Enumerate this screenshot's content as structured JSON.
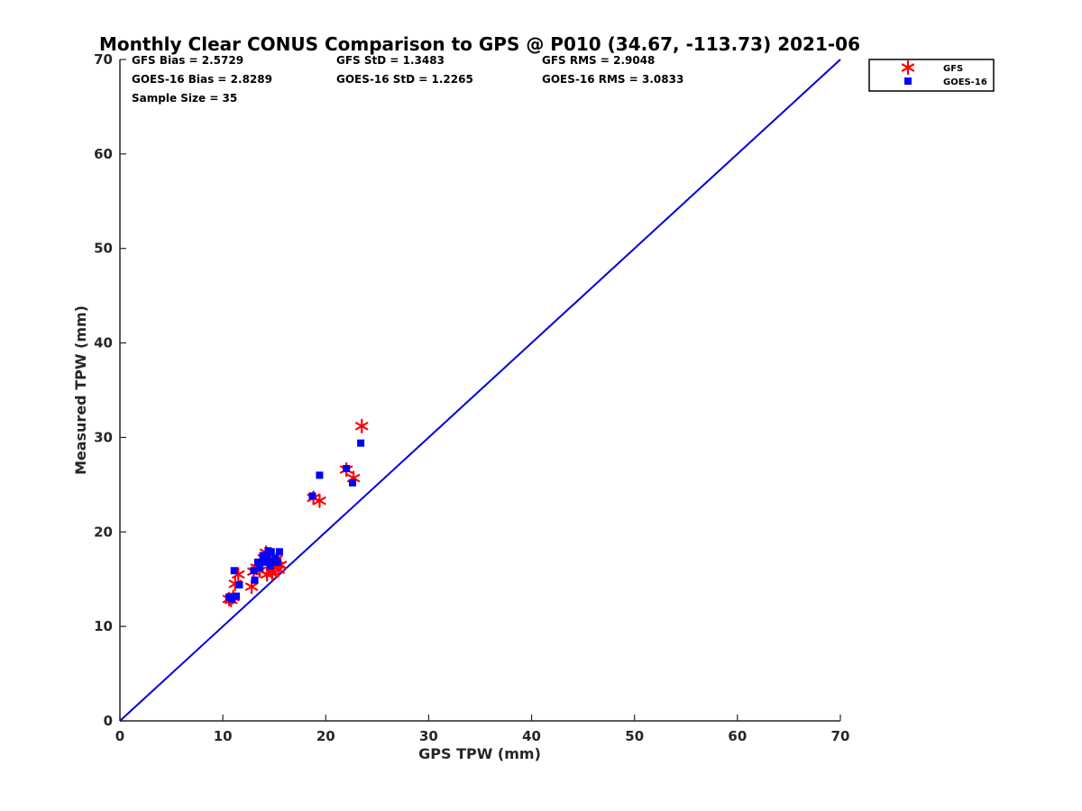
{
  "chart_data": {
    "type": "scatter",
    "title": "Monthly Clear CONUS Comparison to GPS @ P010 (34.67, -113.73) 2021-06",
    "xlabel": "GPS TPW (mm)",
    "ylabel": "Measured TPW (mm)",
    "xlim": [
      0,
      70
    ],
    "ylim": [
      0,
      70
    ],
    "x_ticks": [
      "0",
      "10",
      "20",
      "30",
      "40",
      "50",
      "60",
      "70"
    ],
    "y_ticks": [
      "0",
      "10",
      "20",
      "30",
      "40",
      "50",
      "60",
      "70"
    ],
    "grid": false,
    "legend_position": "outside top-right",
    "stats": [
      "GFS Bias = 2.5729",
      "GFS StD = 1.3483",
      "GFS RMS = 2.9048",
      "GOES-16 Bias = 2.8289",
      "GOES-16 StD = 1.2265",
      "GOES-16 RMS = 3.0833",
      "Sample Size = 35"
    ],
    "reference_line": {
      "x": [
        0,
        70
      ],
      "y": [
        0,
        70
      ],
      "color": "#0000dd"
    },
    "series": [
      {
        "name": "GFS",
        "marker": "asterisk",
        "color": "#ff0000",
        "x": [
          10.6,
          10.8,
          11.0,
          11.2,
          11.5,
          12.8,
          13.0,
          13.3,
          13.6,
          14.0,
          14.2,
          14.3,
          14.5,
          14.7,
          14.8,
          15.0,
          15.2,
          15.4,
          15.6,
          18.8,
          19.4,
          22.0,
          22.7,
          23.5
        ],
        "y": [
          12.9,
          12.8,
          13.1,
          14.5,
          15.5,
          14.2,
          15.8,
          16.2,
          15.9,
          17.2,
          17.8,
          15.5,
          16.9,
          15.9,
          15.6,
          16.3,
          17.1,
          16.0,
          16.5,
          23.6,
          23.3,
          26.6,
          25.7,
          31.2
        ]
      },
      {
        "name": "GOES-16",
        "marker": "square",
        "color": "#0000ff",
        "x": [
          10.6,
          10.9,
          11.1,
          11.3,
          11.6,
          13.0,
          13.1,
          13.4,
          13.6,
          13.9,
          14.1,
          14.3,
          14.4,
          14.6,
          14.7,
          14.9,
          15.1,
          15.3,
          15.5,
          18.7,
          19.4,
          22.0,
          22.6,
          23.4
        ],
        "y": [
          13.1,
          12.9,
          15.9,
          13.2,
          14.4,
          15.9,
          14.9,
          16.8,
          16.2,
          17.5,
          16.8,
          17.2,
          18.0,
          16.4,
          17.9,
          16.9,
          17.2,
          16.8,
          17.9,
          23.8,
          26.0,
          26.7,
          25.2,
          29.4
        ]
      }
    ]
  }
}
